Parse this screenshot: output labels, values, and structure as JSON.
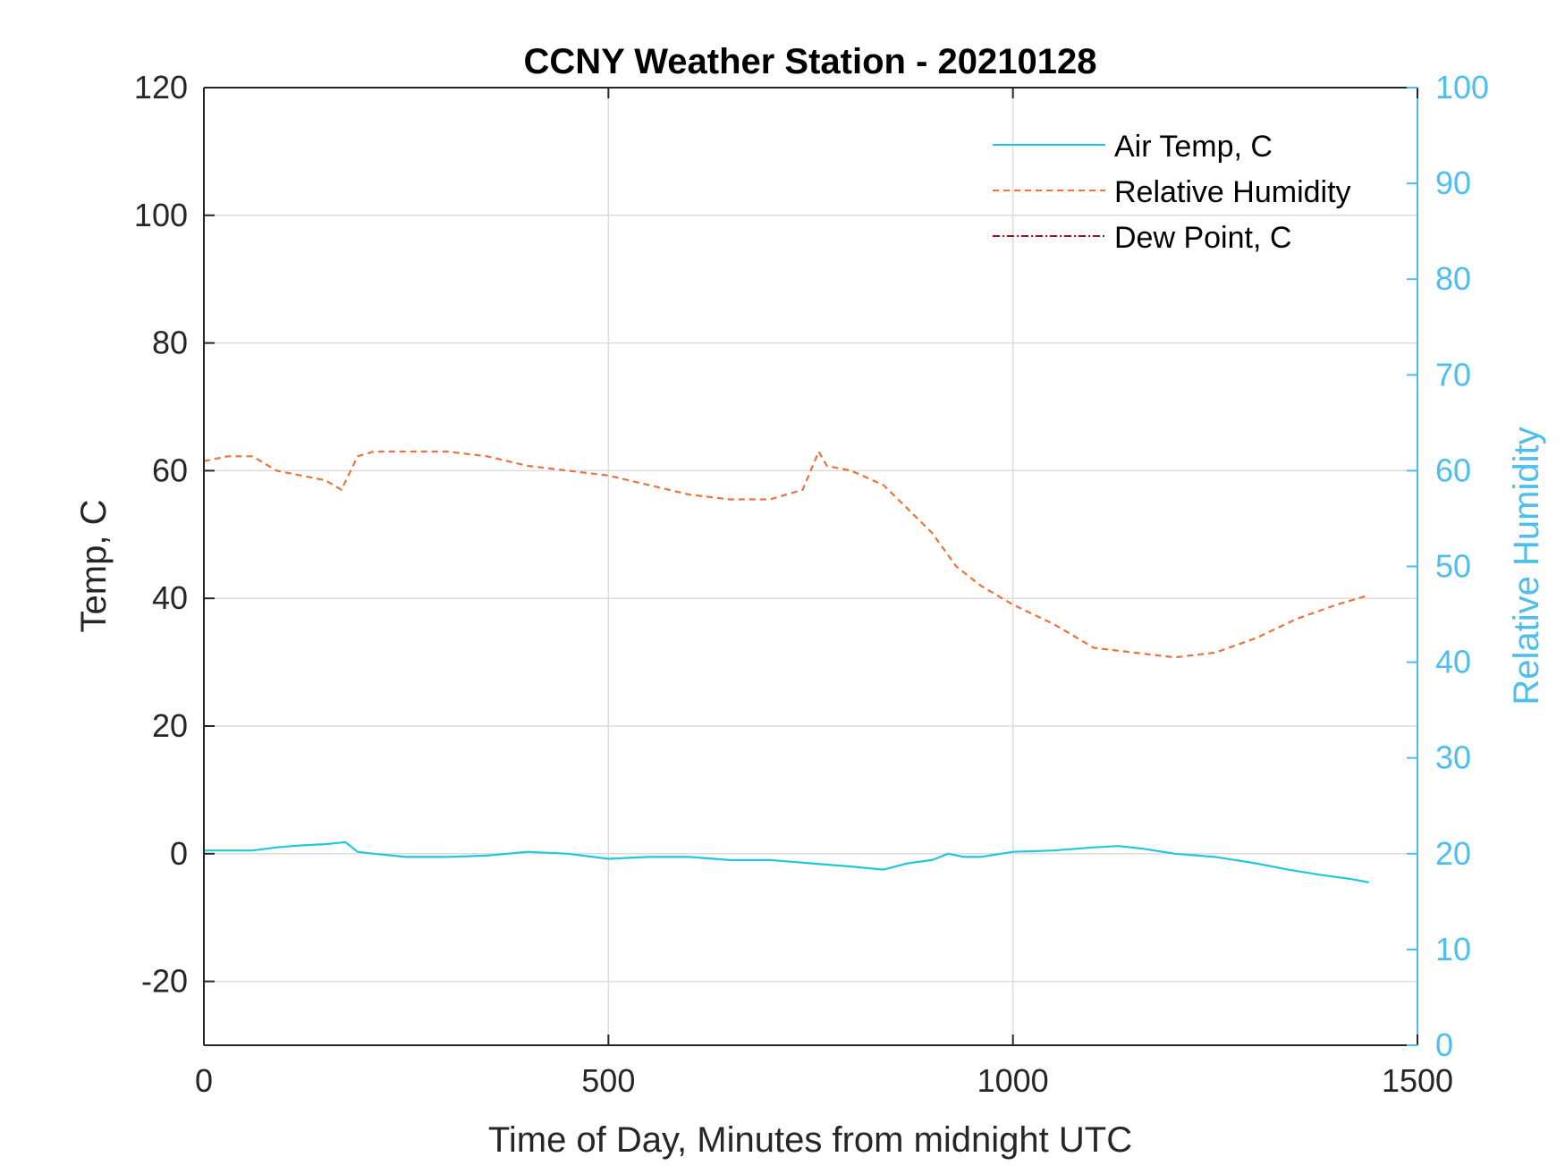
{
  "chart_data": {
    "type": "line",
    "title": "CCNY Weather Station - 20210128",
    "xlabel": "Time of Day, Minutes from midnight UTC",
    "ylabel": "Temp, C",
    "ylabel_right": "Relative Humidity",
    "xlim": [
      0,
      1500
    ],
    "ylim": [
      -30,
      120
    ],
    "ylim_right": [
      0,
      100
    ],
    "xticks": [
      0,
      500,
      1000,
      1500
    ],
    "yticks": [
      -20,
      0,
      20,
      40,
      60,
      80,
      100,
      120
    ],
    "yticks_right": [
      0,
      10,
      20,
      30,
      40,
      50,
      60,
      70,
      80,
      90,
      100
    ],
    "grid": true,
    "legend_position": "top-right",
    "colors": {
      "air_temp": "#1FC8DB",
      "humidity": "#E8743B",
      "dew_point": "#8B1A1A",
      "right_axis": "#4DBEEE",
      "left_axis": "#262626"
    },
    "series": [
      {
        "name": "Air Temp, C",
        "axis": "left",
        "style": "solid",
        "x": [
          0,
          30,
          60,
          90,
          120,
          150,
          175,
          190,
          210,
          250,
          300,
          350,
          400,
          450,
          500,
          550,
          600,
          650,
          700,
          750,
          800,
          840,
          870,
          900,
          920,
          940,
          960,
          1000,
          1050,
          1100,
          1130,
          1160,
          1200,
          1250,
          1300,
          1340,
          1380,
          1420,
          1440
        ],
        "values": [
          0.5,
          0.5,
          0.5,
          1.0,
          1.3,
          1.5,
          1.8,
          0.3,
          0.0,
          -0.5,
          -0.5,
          -0.3,
          0.3,
          0.0,
          -0.8,
          -0.5,
          -0.5,
          -1.0,
          -1.0,
          -1.5,
          -2.0,
          -2.5,
          -1.5,
          -1.0,
          0.0,
          -0.5,
          -0.5,
          0.3,
          0.5,
          1.0,
          1.2,
          0.8,
          0.0,
          -0.5,
          -1.5,
          -2.5,
          -3.3,
          -4.0,
          -4.5
        ]
      },
      {
        "name": "Relative Humidity",
        "axis": "right",
        "style": "dashed",
        "x": [
          0,
          30,
          60,
          90,
          120,
          150,
          170,
          190,
          210,
          250,
          300,
          350,
          400,
          450,
          500,
          550,
          600,
          650,
          700,
          740,
          760,
          770,
          800,
          840,
          870,
          900,
          930,
          960,
          1000,
          1050,
          1100,
          1150,
          1200,
          1250,
          1300,
          1350,
          1400,
          1440
        ],
        "values": [
          61,
          61.5,
          61.5,
          60,
          59.5,
          59,
          58,
          61.5,
          62,
          62,
          62,
          61.5,
          60.5,
          60,
          59.5,
          58.5,
          57.5,
          57,
          57,
          58,
          62,
          60.5,
          60,
          58.5,
          56,
          53.5,
          50,
          48,
          46,
          44,
          41.5,
          41,
          40.5,
          41,
          42.5,
          44.5,
          46,
          47
        ]
      },
      {
        "name": "Dew Point, C",
        "axis": "left",
        "style": "dashdot",
        "x": [],
        "values": []
      }
    ]
  }
}
